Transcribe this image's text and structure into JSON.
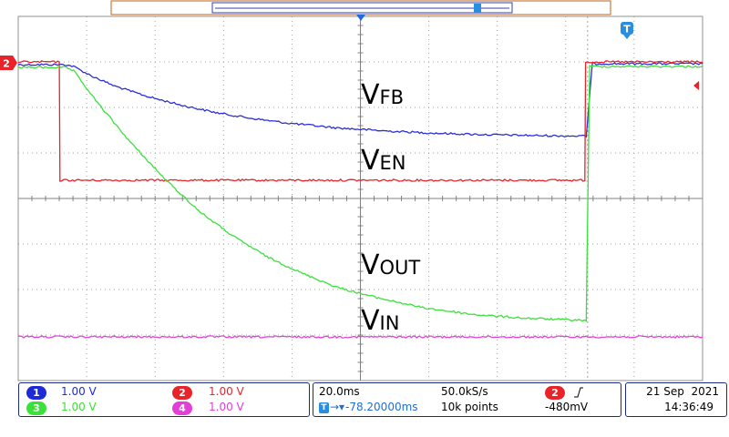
{
  "chart_data": {
    "type": "line",
    "title": "",
    "xlabel": "",
    "ylabel": "",
    "x_unit": "ms",
    "xlim": [
      -78.2,
      121.8
    ],
    "ylim": [
      -4,
      4
    ],
    "grid": true,
    "x_divisions": 10,
    "y_divisions": 8,
    "trigger_time": 88.2,
    "series": [
      {
        "name": "VFB",
        "channel": 1,
        "color": "#2b2fd6",
        "x": [
          -78.2,
          -64.6,
          -62,
          -57,
          -50,
          -40,
          -30,
          -20,
          -10,
          0,
          15,
          30,
          45,
          60,
          75,
          87.8,
          89.6,
          121.8
        ],
        "y": [
          2.94,
          2.94,
          2.9,
          2.7,
          2.47,
          2.23,
          2.04,
          1.88,
          1.76,
          1.66,
          1.55,
          1.48,
          1.43,
          1.4,
          1.38,
          1.37,
          2.96,
          2.96
        ]
      },
      {
        "name": "VEN",
        "channel": 2,
        "color": "#e8232a",
        "x": [
          -78.2,
          -66.2,
          -66,
          87.4,
          87.6,
          121.8
        ],
        "y": [
          3.0,
          3.0,
          0.4,
          0.4,
          3.0,
          3.0
        ]
      },
      {
        "name": "VOUT",
        "channel": 3,
        "color": "#3be03b",
        "x": [
          -78.2,
          -64.6,
          -62,
          -55,
          -45,
          -35,
          -25,
          -15,
          -5,
          5,
          15,
          25,
          40,
          55,
          70,
          87.8,
          88.8,
          121.8
        ],
        "y": [
          2.88,
          2.88,
          2.8,
          2.1,
          1.2,
          0.4,
          -0.3,
          -0.85,
          -1.3,
          -1.65,
          -1.95,
          -2.15,
          -2.4,
          -2.55,
          -2.63,
          -2.68,
          2.9,
          2.9
        ]
      },
      {
        "name": "VIN",
        "channel": 4,
        "color": "#e040d8",
        "x": [
          -78.2,
          121.8
        ],
        "y": [
          -3.04,
          -3.04
        ]
      }
    ],
    "annotations": [
      {
        "series": 0,
        "text": "VFB",
        "main": "V",
        "sub": "FB"
      },
      {
        "series": 1,
        "text": "VEN",
        "main": "V",
        "sub": "EN"
      },
      {
        "series": 2,
        "text": "VOUT",
        "main": "V",
        "sub": "OUT"
      },
      {
        "series": 3,
        "text": "VIN",
        "main": "V",
        "sub": "IN"
      }
    ]
  },
  "markers": {
    "ch2_marker": "2",
    "trigger_marker": "T"
  },
  "channels": [
    {
      "num": "1",
      "scale": "1.00 V",
      "color": "#1e2ad8"
    },
    {
      "num": "2",
      "scale": "1.00 V",
      "color": "#e8232a"
    },
    {
      "num": "3",
      "scale": "1.00 V",
      "color": "#3be03b"
    },
    {
      "num": "4",
      "scale": "1.00 V",
      "color": "#e040d8"
    }
  ],
  "timebase": {
    "scale": "20.0ms",
    "sample_rate": "50.0kS/s",
    "delay": "-78.20000ms",
    "record_length": "10k points"
  },
  "trigger": {
    "channel": "2",
    "slope_icon": "rising-edge-icon",
    "level": "-480mV"
  },
  "clock": {
    "date": "21 Sep  2021",
    "time": "14:36:49"
  },
  "colors": {
    "grid": "#a0a0a0",
    "frame": "#1a2a8c",
    "record_bar": "#c06010"
  }
}
